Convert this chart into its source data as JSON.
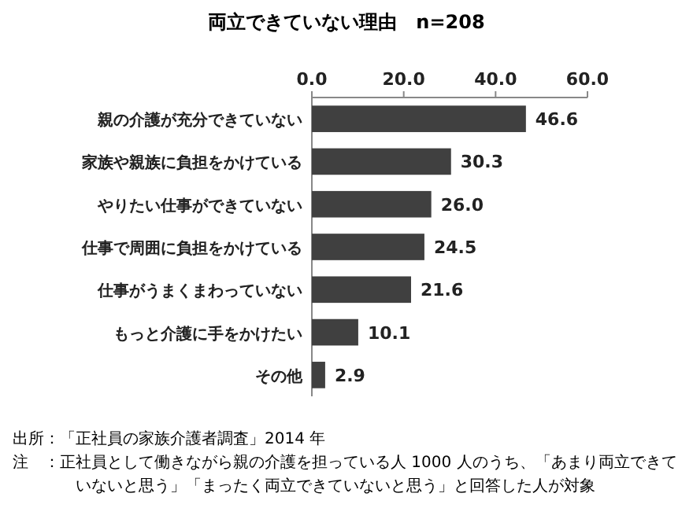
{
  "chart_data": {
    "type": "bar",
    "orientation": "horizontal",
    "title": "両立できていない理由　n=208",
    "categories": [
      "親の介護が充分できていない",
      "家族や親族に負担をかけている",
      "やりたい仕事ができていない",
      "仕事で周囲に負担をかけている",
      "仕事がうまくまわっていない",
      "もっと介護に手をかけたい",
      "その他"
    ],
    "values": [
      46.6,
      30.3,
      26.0,
      24.5,
      21.6,
      10.1,
      2.9
    ],
    "value_labels": [
      "46.6",
      "30.3",
      "26.0",
      "24.5",
      "21.6",
      "10.1",
      "2.9"
    ],
    "color": "#404040",
    "xlim": [
      0,
      60
    ],
    "xticks": [
      {
        "value": 0,
        "label": "0.0"
      },
      {
        "value": 20,
        "label": "20.0"
      },
      {
        "value": 40,
        "label": "40.0"
      },
      {
        "value": 60,
        "label": "60.0"
      }
    ],
    "grid": false,
    "annotations": [
      "出所：「正社員の家族介護者調査」2014 年",
      "注　：正社員として働きながら親の介護を担っている人 1000 人のうち、「あまり両立できていないと思う」「まったく両立できていないと思う」と回答した人が対象"
    ]
  }
}
